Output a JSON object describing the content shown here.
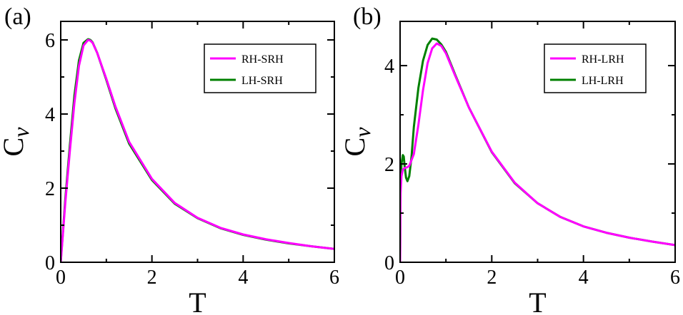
{
  "chart_data": [
    {
      "type": "line",
      "panel_label": "(a)",
      "xlabel": "T",
      "ylabel": "C",
      "ylabel_sub": "v",
      "xlim": [
        0,
        6
      ],
      "ylim": [
        0,
        6.5
      ],
      "xticks": [
        0,
        2,
        4,
        6
      ],
      "yticks": [
        0,
        2,
        4,
        6
      ],
      "grid": false,
      "legend_position": "top-right",
      "series": [
        {
          "name": "RH-SRH",
          "color": "#ff00ff",
          "x": [
            0.0,
            0.05,
            0.1,
            0.2,
            0.3,
            0.4,
            0.5,
            0.6,
            0.65,
            0.7,
            0.8,
            1.0,
            1.2,
            1.5,
            2.0,
            2.5,
            3.0,
            3.5,
            4.0,
            4.5,
            5.0,
            5.5,
            6.0
          ],
          "y": [
            0.0,
            0.8,
            1.6,
            3.0,
            4.3,
            5.3,
            5.85,
            6.0,
            5.98,
            5.92,
            5.65,
            4.95,
            4.2,
            3.25,
            2.25,
            1.6,
            1.2,
            0.93,
            0.75,
            0.62,
            0.52,
            0.43,
            0.36
          ]
        },
        {
          "name": "LH-SRH",
          "color": "#008000",
          "x": [
            0.0,
            0.05,
            0.1,
            0.2,
            0.3,
            0.4,
            0.5,
            0.6,
            0.65,
            0.7,
            0.8,
            1.0,
            1.2,
            1.5,
            2.0,
            2.5,
            3.0,
            3.5,
            4.0,
            4.5,
            5.0,
            5.5,
            6.0
          ],
          "y": [
            0.0,
            0.85,
            1.7,
            3.15,
            4.5,
            5.45,
            5.92,
            6.02,
            6.0,
            5.93,
            5.65,
            4.92,
            4.15,
            3.2,
            2.22,
            1.58,
            1.19,
            0.92,
            0.74,
            0.61,
            0.51,
            0.43,
            0.36
          ]
        }
      ]
    },
    {
      "type": "line",
      "panel_label": "(b)",
      "xlabel": "T",
      "ylabel": "C",
      "ylabel_sub": "v",
      "xlim": [
        0,
        6
      ],
      "ylim": [
        0,
        4.9
      ],
      "xticks": [
        0,
        2,
        4,
        6
      ],
      "yticks": [
        0,
        2,
        4
      ],
      "grid": false,
      "legend_position": "top-right",
      "series": [
        {
          "name": "RH-LRH",
          "color": "#ff00ff",
          "x": [
            0.0,
            0.01,
            0.03,
            0.06,
            0.1,
            0.15,
            0.2,
            0.3,
            0.4,
            0.5,
            0.6,
            0.7,
            0.8,
            0.9,
            1.0,
            1.2,
            1.5,
            2.0,
            2.5,
            3.0,
            3.5,
            4.0,
            4.5,
            5.0,
            5.5,
            6.0
          ],
          "y": [
            0.0,
            1.4,
            1.75,
            1.88,
            1.92,
            1.93,
            1.96,
            2.2,
            2.8,
            3.5,
            4.05,
            4.35,
            4.45,
            4.4,
            4.25,
            3.8,
            3.15,
            2.25,
            1.62,
            1.2,
            0.92,
            0.73,
            0.6,
            0.5,
            0.42,
            0.35
          ]
        },
        {
          "name": "LH-LRH",
          "color": "#008000",
          "x": [
            0.0,
            0.01,
            0.03,
            0.06,
            0.08,
            0.1,
            0.13,
            0.16,
            0.2,
            0.25,
            0.3,
            0.4,
            0.5,
            0.6,
            0.7,
            0.8,
            0.9,
            1.0,
            1.2,
            1.5,
            2.0,
            2.5,
            3.0,
            3.5,
            4.0,
            4.5,
            5.0,
            5.5,
            6.0
          ],
          "y": [
            0.0,
            1.5,
            2.0,
            2.18,
            2.15,
            1.95,
            1.72,
            1.65,
            1.75,
            2.15,
            2.75,
            3.55,
            4.1,
            4.42,
            4.55,
            4.53,
            4.43,
            4.28,
            3.82,
            3.15,
            2.24,
            1.61,
            1.2,
            0.92,
            0.73,
            0.6,
            0.5,
            0.42,
            0.35
          ]
        }
      ]
    }
  ]
}
